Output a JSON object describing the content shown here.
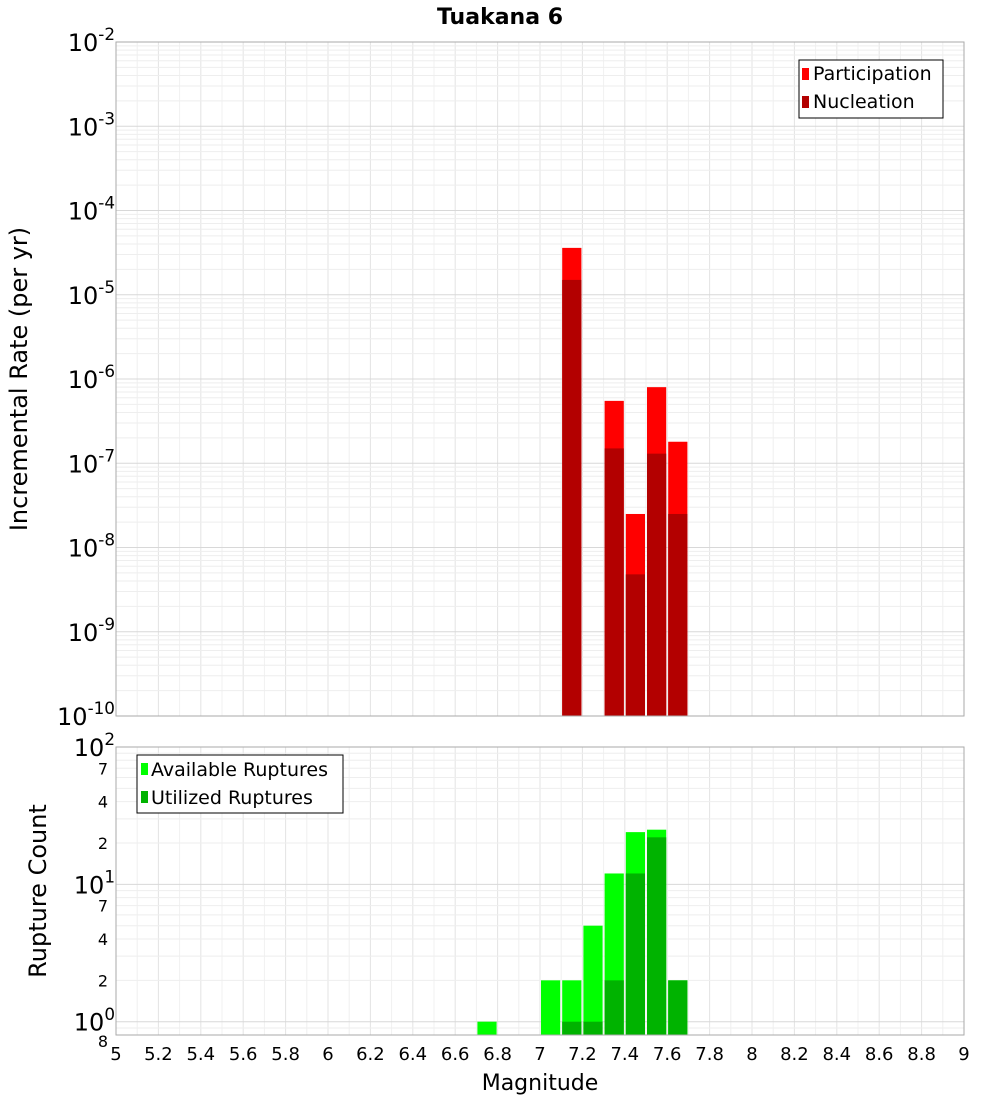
{
  "chart_data": [
    {
      "type": "bar",
      "title": "Tuakana 6",
      "ylabel": "Incremental Rate (per yr)",
      "xlabel": "",
      "xlim": [
        5,
        9
      ],
      "ylim": [
        1e-10,
        0.01
      ],
      "yscale": "log",
      "y_ticks": [
        {
          "base": "10",
          "exp": "-10"
        },
        {
          "base": "10",
          "exp": "-9"
        },
        {
          "base": "10",
          "exp": "-8"
        },
        {
          "base": "10",
          "exp": "-7"
        },
        {
          "base": "10",
          "exp": "-6"
        },
        {
          "base": "10",
          "exp": "-5"
        },
        {
          "base": "10",
          "exp": "-4"
        },
        {
          "base": "10",
          "exp": "-3"
        },
        {
          "base": "10",
          "exp": "-2"
        }
      ],
      "grid": true,
      "legend_position": "top-right",
      "colors": {
        "Participation": "#ff0000",
        "Nucleation": "#b30000"
      },
      "bin_width": 0.1,
      "series": [
        {
          "name": "Participation",
          "x": [
            7.15,
            7.35,
            7.45,
            7.55,
            7.65
          ],
          "values": [
            3.6e-05,
            5.5e-07,
            2.5e-08,
            8e-07,
            1.8e-07
          ]
        },
        {
          "name": "Nucleation",
          "x": [
            7.15,
            7.35,
            7.45,
            7.55,
            7.65
          ],
          "values": [
            1.5e-05,
            1.5e-07,
            4.8e-09,
            1.3e-07,
            2.5e-08
          ]
        }
      ]
    },
    {
      "type": "bar",
      "title": "",
      "ylabel": "Rupture Count",
      "xlabel": "Magnitude",
      "xlim": [
        5,
        9
      ],
      "ylim": [
        0.8,
        100
      ],
      "yscale": "log",
      "x_ticks": [
        "5",
        "5.2",
        "5.4",
        "5.6",
        "5.8",
        "6",
        "6.2",
        "6.4",
        "6.6",
        "6.8",
        "7",
        "7.2",
        "7.4",
        "7.6",
        "7.8",
        "8",
        "8.2",
        "8.4",
        "8.6",
        "8.8",
        "9"
      ],
      "y_major_ticks": [
        {
          "value": 1,
          "base": "10",
          "exp": "0"
        },
        {
          "value": 10,
          "base": "10",
          "exp": "1"
        },
        {
          "value": 100,
          "base": "10",
          "exp": "2"
        }
      ],
      "y_minor_ticks": [
        {
          "value": 0.8,
          "label": "8"
        },
        {
          "value": 2,
          "label": "2"
        },
        {
          "value": 4,
          "label": "4"
        },
        {
          "value": 7,
          "label": "7"
        },
        {
          "value": 20,
          "label": "2"
        },
        {
          "value": 40,
          "label": "4"
        },
        {
          "value": 70,
          "label": "7"
        }
      ],
      "grid": true,
      "legend_position": "top-left",
      "colors": {
        "Available Ruptures": "#00ff00",
        "Utilized Ruptures": "#00b300"
      },
      "bin_width": 0.1,
      "series": [
        {
          "name": "Available Ruptures",
          "x": [
            6.75,
            7.05,
            7.15,
            7.25,
            7.35,
            7.45,
            7.55,
            7.65
          ],
          "values": [
            1,
            2,
            2,
            5,
            12,
            24,
            25,
            2
          ]
        },
        {
          "name": "Utilized Ruptures",
          "x": [
            7.15,
            7.25,
            7.35,
            7.45,
            7.55,
            7.65
          ],
          "values": [
            1,
            1,
            2,
            12,
            22,
            2
          ]
        }
      ]
    }
  ]
}
